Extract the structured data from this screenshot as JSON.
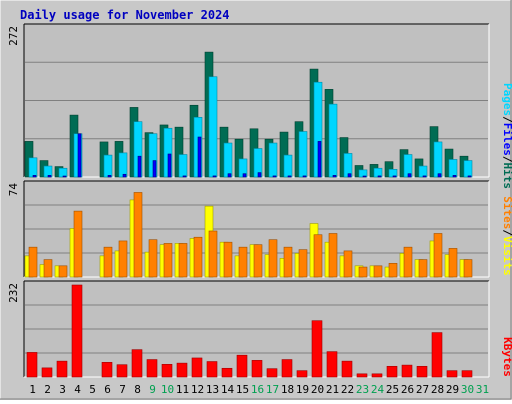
{
  "title": "Daily usage for November 2024",
  "colors": {
    "frame_bg": "#c8c8c8",
    "plot_bg": "#c0c0c0",
    "hits": "#006c54",
    "files": "#00d6ff",
    "pages": "#0000ff",
    "visits": "#ffff00",
    "sites": "#ff8000",
    "kbytes": "#ff0000",
    "title": "#0000c0",
    "weekend": "#00a050"
  },
  "chart_data": {
    "type": "bar",
    "title": "Daily usage for November 2024",
    "categories": [
      "1",
      "2",
      "3",
      "4",
      "5",
      "6",
      "7",
      "8",
      "9",
      "10",
      "11",
      "12",
      "13",
      "14",
      "15",
      "16",
      "17",
      "18",
      "19",
      "20",
      "21",
      "22",
      "23",
      "24",
      "25",
      "26",
      "27",
      "28",
      "29",
      "30",
      "31"
    ],
    "weekend_days": [
      "9",
      "10",
      "16",
      "17",
      "23",
      "24",
      "30",
      "31"
    ],
    "legend": {
      "upper": [
        "Pages",
        "/",
        "Files",
        "/",
        "Hits"
      ],
      "middle": [
        "Sites",
        "/",
        "Visits"
      ],
      "lower": [
        "KBytes"
      ]
    },
    "panels": [
      {
        "id": "upper",
        "max_label": "272",
        "ylim": [
          0,
          272
        ],
        "series": [
          {
            "name": "Hits",
            "values": [
              65,
              30,
              19,
              113,
              0,
              64,
              65,
              127,
              81,
              95,
              91,
              131,
              228,
              91,
              69,
              88,
              69,
              82,
              101,
              197,
              160,
              72,
              21,
              23,
              28,
              50,
              33,
              92,
              51,
              38,
              0
            ]
          },
          {
            "name": "Files",
            "values": [
              35,
              20,
              16,
              79,
              0,
              40,
              44,
              101,
              79,
              89,
              41,
              109,
              183,
              62,
              33,
              52,
              62,
              40,
              83,
              173,
              133,
              43,
              13,
              16,
              14,
              41,
              20,
              64,
              32,
              30,
              0
            ]
          },
          {
            "name": "Pages",
            "values": [
              3,
              3,
              1,
              79,
              0,
              3,
              5,
              38,
              30,
              42,
              2,
              73,
              2,
              6,
              6,
              8,
              2,
              2,
              2,
              65,
              3,
              6,
              1,
              2,
              2,
              6,
              2,
              6,
              3,
              2,
              0
            ]
          }
        ]
      },
      {
        "id": "middle",
        "max_label": "74",
        "ylim": [
          0,
          74
        ],
        "series": [
          {
            "name": "Visits",
            "values": [
              17,
              10,
              9,
              39,
              0,
              17,
              21,
              62,
              20,
              26,
              27,
              31,
              57,
              28,
              17,
              26,
              18,
              15,
              19,
              43,
              28,
              17,
              9,
              9,
              8,
              19,
              14,
              29,
              18,
              14,
              0
            ]
          },
          {
            "name": "Sites",
            "values": [
              24,
              14,
              9,
              53,
              0,
              24,
              29,
              68,
              30,
              27,
              27,
              32,
              37,
              28,
              24,
              26,
              30,
              24,
              22,
              34,
              35,
              21,
              8,
              9,
              11,
              24,
              14,
              35,
              23,
              14,
              0
            ]
          }
        ]
      },
      {
        "id": "lower",
        "max_label": "232",
        "ylim": [
          0,
          232
        ],
        "series": [
          {
            "name": "KBytes",
            "values": [
              62,
              23,
              40,
              232,
              0,
              37,
              31,
              69,
              44,
              32,
              35,
              48,
              39,
              22,
              55,
              42,
              21,
              44,
              16,
              142,
              64,
              40,
              8,
              8,
              27,
              30,
              27,
              112,
              16,
              16,
              0
            ]
          }
        ]
      }
    ]
  }
}
